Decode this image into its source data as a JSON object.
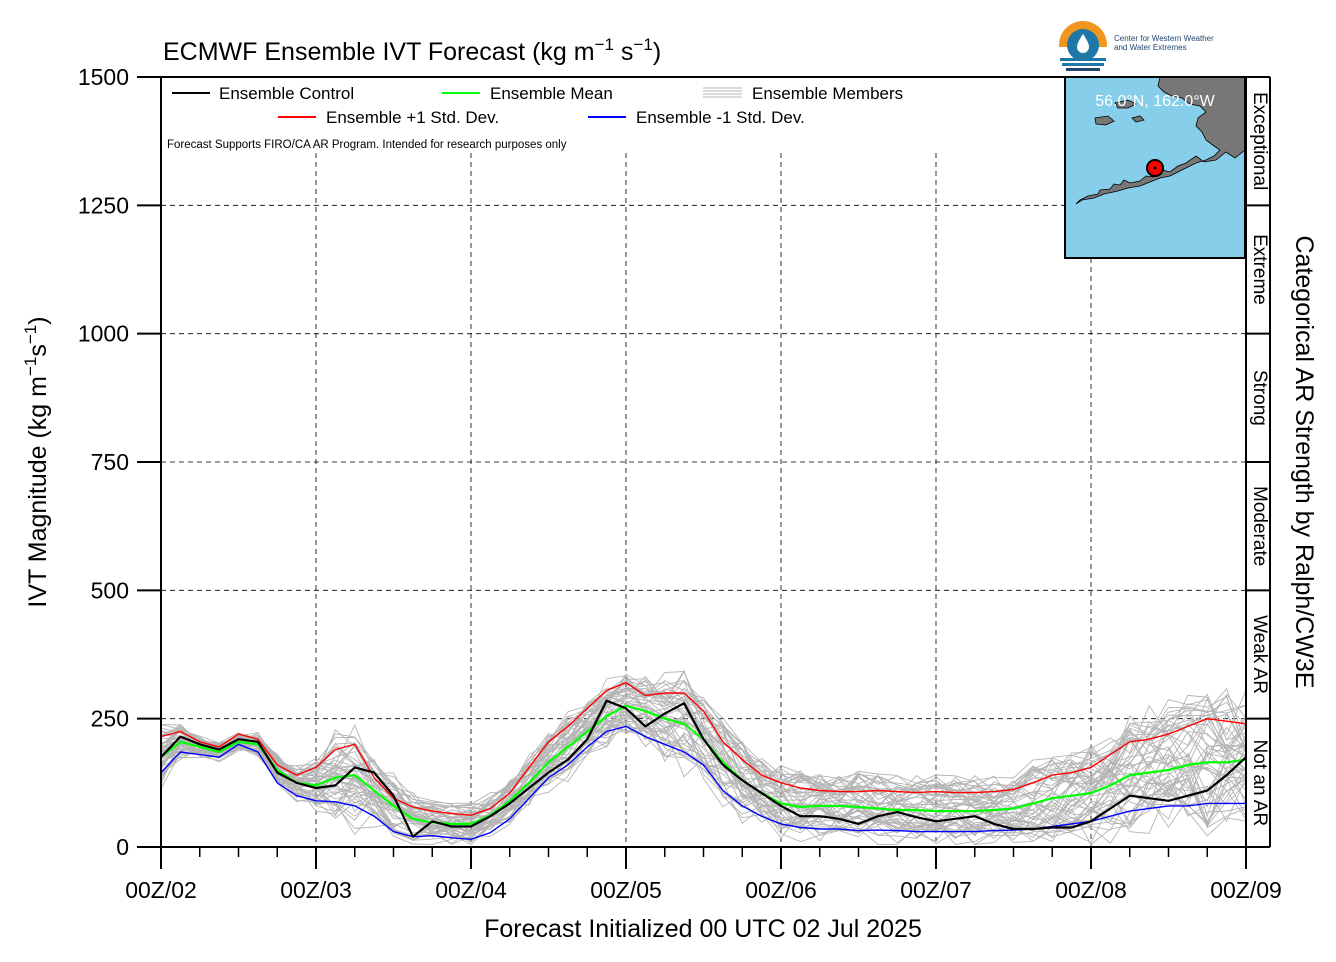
{
  "title": "ECMWF Ensemble IVT Forecast (kg m",
  "title_units": {
    "exp1": "−1",
    "s": " s",
    "exp2": "−1",
    "close": ")"
  },
  "ylabel": {
    "main": "IVT Magnitude (kg m",
    "exp1": "−1",
    "s": "s",
    "exp2": "−1",
    "close": ")"
  },
  "xlabel": "Forecast Initialized 00 UTC 02 Jul 2025",
  "right_label": "Categorical AR Strength by Ralph/CW3E",
  "note": "Forecast Supports FIRO/CA AR Program. Intended for research purposes only",
  "logo": {
    "line1": "Center for Western Weather",
    "line2": "and Water Extremes",
    "colors": {
      "orange": "#f0961e",
      "blue": "#1d78a8",
      "navy": "#20486e"
    }
  },
  "inset": {
    "coords": "56.0°N, 162.0°W",
    "ocean": "#87ceeb",
    "land": "#777777",
    "marker": "#ff0000"
  },
  "legend": {
    "control": "Ensemble Control",
    "mean": "Ensemble Mean",
    "members": "Ensemble Members",
    "plus": "Ensemble +1 Std. Dev.",
    "minus": "Ensemble -1 Std. Dev."
  },
  "categories": [
    {
      "label": "Not an AR",
      "range": [
        0,
        250
      ]
    },
    {
      "label": "Weak AR",
      "range": [
        250,
        500
      ]
    },
    {
      "label": "Moderate",
      "range": [
        500,
        750
      ]
    },
    {
      "label": "Strong",
      "range": [
        750,
        1000
      ]
    },
    {
      "label": "Extreme",
      "range": [
        1000,
        1250
      ]
    },
    {
      "label": "Exceptional",
      "range": [
        1250,
        1500
      ]
    }
  ],
  "chart_data": {
    "type": "line",
    "xlabel": "Forecast Initialized 00 UTC 02 Jul 2025",
    "ylabel": "IVT Magnitude (kg m−1s−1)",
    "ylim": [
      0,
      1500
    ],
    "yticks": [
      0,
      250,
      500,
      750,
      1000,
      1250,
      1500
    ],
    "xlim": [
      0,
      168
    ],
    "xticks": [
      {
        "h": 0,
        "label": "00Z/02"
      },
      {
        "h": 24,
        "label": "00Z/03"
      },
      {
        "h": 48,
        "label": "00Z/04"
      },
      {
        "h": 72,
        "label": "00Z/05"
      },
      {
        "h": 96,
        "label": "00Z/06"
      },
      {
        "h": 120,
        "label": "00Z/07"
      },
      {
        "h": 144,
        "label": "00Z/08"
      },
      {
        "h": 168,
        "label": "00Z/09"
      }
    ],
    "grid": true,
    "legend_position": "top-left",
    "series": [
      {
        "name": "Ensemble Control",
        "color": "#000000",
        "x": [
          0,
          3,
          6,
          9,
          12,
          15,
          18,
          21,
          24,
          27,
          30,
          33,
          36,
          39,
          42,
          45,
          48,
          51,
          54,
          57,
          60,
          63,
          66,
          69,
          72,
          75,
          78,
          81,
          84,
          87,
          90,
          93,
          96,
          99,
          102,
          105,
          108,
          111,
          114,
          117,
          120,
          123,
          126,
          129,
          132,
          135,
          138,
          141,
          144,
          147,
          150,
          153,
          156,
          159,
          162,
          165,
          168
        ],
        "y": [
          175,
          215,
          200,
          190,
          210,
          205,
          145,
          125,
          115,
          120,
          155,
          145,
          100,
          20,
          50,
          40,
          40,
          60,
          85,
          115,
          145,
          170,
          210,
          285,
          270,
          235,
          260,
          280,
          210,
          160,
          130,
          105,
          80,
          60,
          60,
          55,
          45,
          60,
          68,
          58,
          50,
          55,
          60,
          45,
          35,
          35,
          38,
          38,
          50,
          75,
          100,
          95,
          90,
          100,
          110,
          140,
          175
        ]
      },
      {
        "name": "Ensemble Mean",
        "color": "#00ff00",
        "x": [
          0,
          3,
          6,
          9,
          12,
          15,
          18,
          21,
          24,
          27,
          30,
          33,
          36,
          39,
          42,
          45,
          48,
          51,
          54,
          57,
          60,
          63,
          66,
          69,
          72,
          75,
          78,
          81,
          84,
          87,
          90,
          93,
          96,
          99,
          102,
          105,
          108,
          111,
          114,
          117,
          120,
          123,
          126,
          129,
          132,
          135,
          138,
          141,
          144,
          147,
          150,
          153,
          156,
          159,
          162,
          165,
          168
        ],
        "y": [
          175,
          205,
          195,
          185,
          205,
          200,
          150,
          125,
          120,
          135,
          140,
          110,
          80,
          55,
          48,
          45,
          45,
          62,
          90,
          125,
          165,
          195,
          225,
          255,
          275,
          265,
          250,
          240,
          210,
          165,
          130,
          105,
          85,
          78,
          80,
          80,
          78,
          75,
          72,
          72,
          70,
          70,
          70,
          72,
          75,
          85,
          95,
          100,
          105,
          120,
          140,
          145,
          150,
          160,
          165,
          165,
          170
        ]
      },
      {
        "name": "Ensemble +1 Std. Dev.",
        "color": "#ff0000",
        "x": [
          0,
          3,
          6,
          9,
          12,
          15,
          18,
          21,
          24,
          27,
          30,
          33,
          36,
          39,
          42,
          45,
          48,
          51,
          54,
          57,
          60,
          63,
          66,
          69,
          72,
          75,
          78,
          81,
          84,
          87,
          90,
          93,
          96,
          99,
          102,
          105,
          108,
          111,
          114,
          117,
          120,
          123,
          126,
          129,
          132,
          135,
          138,
          141,
          144,
          147,
          150,
          153,
          156,
          159,
          162,
          165,
          168
        ],
        "y": [
          215,
          225,
          205,
          195,
          220,
          210,
          160,
          140,
          155,
          190,
          200,
          135,
          95,
          78,
          70,
          65,
          62,
          75,
          105,
          155,
          205,
          235,
          270,
          305,
          320,
          295,
          300,
          300,
          265,
          205,
          170,
          140,
          125,
          115,
          110,
          108,
          108,
          110,
          108,
          106,
          108,
          106,
          106,
          108,
          112,
          125,
          140,
          145,
          155,
          180,
          205,
          210,
          220,
          235,
          250,
          245,
          240
        ]
      },
      {
        "name": "Ensemble -1 Std. Dev.",
        "color": "#0000ff",
        "x": [
          0,
          3,
          6,
          9,
          12,
          15,
          18,
          21,
          24,
          27,
          30,
          33,
          36,
          39,
          42,
          45,
          48,
          51,
          54,
          57,
          60,
          63,
          66,
          69,
          72,
          75,
          78,
          81,
          84,
          87,
          90,
          93,
          96,
          99,
          102,
          105,
          108,
          111,
          114,
          117,
          120,
          123,
          126,
          129,
          132,
          135,
          138,
          141,
          144,
          147,
          150,
          153,
          156,
          159,
          162,
          165,
          168
        ],
        "y": [
          145,
          185,
          180,
          175,
          200,
          185,
          125,
          100,
          90,
          88,
          80,
          60,
          30,
          20,
          22,
          18,
          15,
          28,
          55,
          95,
          135,
          160,
          195,
          225,
          235,
          215,
          200,
          185,
          160,
          110,
          80,
          60,
          45,
          38,
          35,
          35,
          32,
          33,
          32,
          30,
          30,
          30,
          30,
          32,
          33,
          35,
          40,
          45,
          50,
          60,
          70,
          75,
          80,
          80,
          85,
          85,
          85
        ]
      }
    ],
    "members": {
      "name": "Ensemble Members",
      "color": "#b4b4b4",
      "note": "51 grey member traces spread between the minus and plus std dev envelope"
    }
  }
}
